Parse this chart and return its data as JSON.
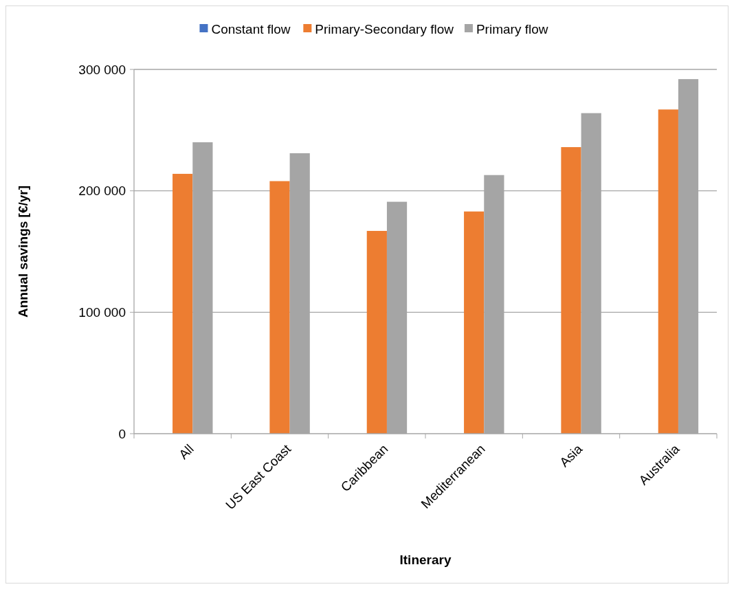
{
  "chart_data": {
    "type": "bar",
    "xlabel": "Itinerary",
    "ylabel": "Annual savings [€/yr]",
    "categories": [
      "All",
      "US East Coast",
      "Caribbean",
      "Mediterranean",
      "Asia",
      "Australia"
    ],
    "series": [
      {
        "name": "Constant flow",
        "color": "#4472c4",
        "values": [
          0,
          0,
          0,
          0,
          0,
          0
        ]
      },
      {
        "name": "Primary-Secondary flow",
        "color": "#ed7d31",
        "values": [
          214000,
          208000,
          167000,
          183000,
          236000,
          267000
        ]
      },
      {
        "name": "Primary flow",
        "color": "#a5a5a5",
        "values": [
          240000,
          231000,
          191000,
          213000,
          264000,
          292000
        ]
      }
    ],
    "ylim": [
      0,
      300000
    ],
    "yticks": [
      {
        "value": 0,
        "label": "0"
      },
      {
        "value": 100000,
        "label": "100 000"
      },
      {
        "value": 200000,
        "label": "200 000"
      },
      {
        "value": 300000,
        "label": "300 000"
      }
    ],
    "grid": "y",
    "legend": "top"
  }
}
